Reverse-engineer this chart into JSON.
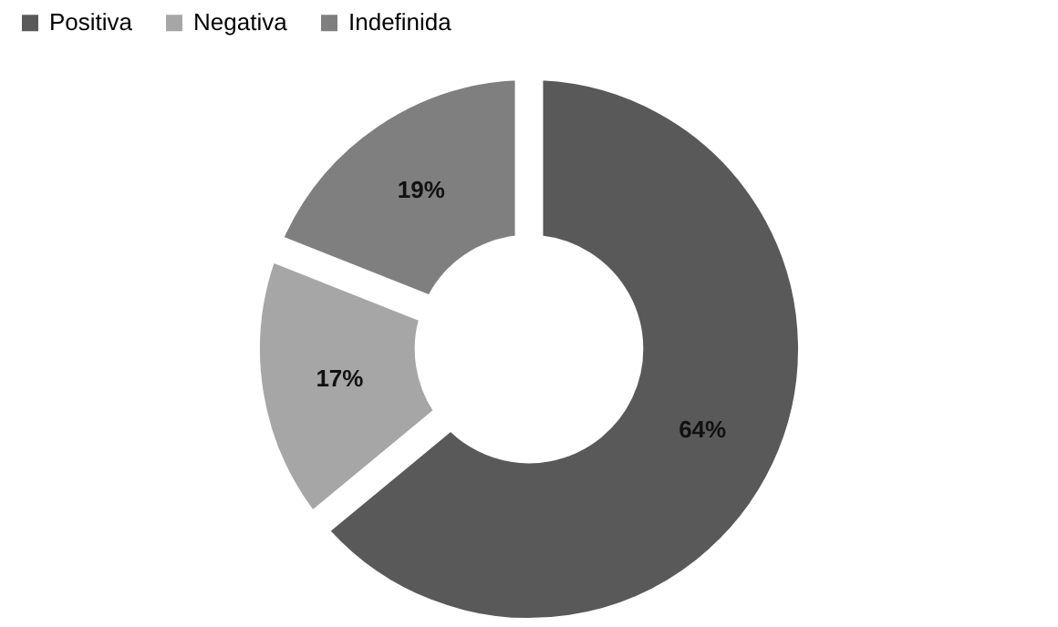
{
  "chart_data": {
    "type": "donut",
    "categories": [
      "Positiva",
      "Negativa",
      "Indefinida"
    ],
    "values": [
      64,
      17,
      19
    ],
    "colors": [
      "#595959",
      "#a6a6a6",
      "#7f7f7f"
    ],
    "value_labels": [
      "64%",
      "17%",
      "19%"
    ],
    "legend": "top"
  }
}
